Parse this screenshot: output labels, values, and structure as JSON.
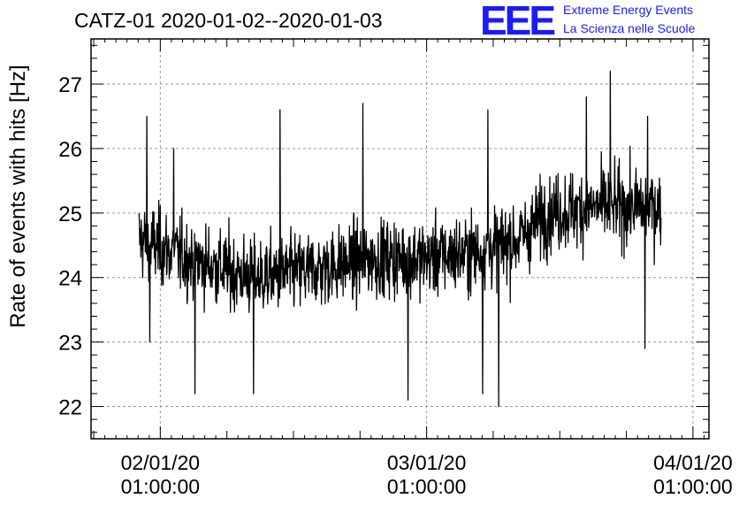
{
  "title": "CATZ-01 2020-01-02--2020-01-03",
  "logo": {
    "text": "EEE",
    "line1": "Extreme Energy Events",
    "line2": "La Scienza nelle Scuole",
    "color": "#1a1aff"
  },
  "chart_data": {
    "type": "line",
    "ylabel": "Rate of events with hits [Hz]",
    "xlabel": "",
    "ylim": [
      21.5,
      27.7
    ],
    "xlim": [
      -0.26,
      2.06
    ],
    "grid": true,
    "y_ticks": [
      22,
      23,
      24,
      25,
      26,
      27
    ],
    "x_ticks": [
      {
        "value": 0,
        "date": "02/01/20",
        "time": "01:00:00"
      },
      {
        "value": 1,
        "date": "03/01/20",
        "time": "01:00:00"
      },
      {
        "value": 2,
        "date": "04/01/20",
        "time": "01:00:00"
      }
    ],
    "series_style": {
      "color": "#000000"
    },
    "series": [
      {
        "x_start": -0.08,
        "x_end": 1.88,
        "trend": [
          {
            "x": -0.08,
            "y": 24.6
          },
          {
            "x": 0.1,
            "y": 24.3
          },
          {
            "x": 0.35,
            "y": 24.0
          },
          {
            "x": 0.55,
            "y": 24.1
          },
          {
            "x": 0.8,
            "y": 24.3
          },
          {
            "x": 1.0,
            "y": 24.3
          },
          {
            "x": 1.2,
            "y": 24.4
          },
          {
            "x": 1.35,
            "y": 24.6
          },
          {
            "x": 1.45,
            "y": 25.0
          },
          {
            "x": 1.65,
            "y": 25.1
          },
          {
            "x": 1.88,
            "y": 25.1
          }
        ],
        "spread": 0.42,
        "peaks": [
          {
            "x": -0.05,
            "y": 26.5
          },
          {
            "x": 0.05,
            "y": 26.0
          },
          {
            "x": 0.45,
            "y": 26.6
          },
          {
            "x": 0.76,
            "y": 26.7
          },
          {
            "x": 1.23,
            "y": 26.6
          },
          {
            "x": 1.6,
            "y": 26.8
          },
          {
            "x": 1.69,
            "y": 27.2
          },
          {
            "x": 1.83,
            "y": 26.5
          }
        ],
        "troughs": [
          {
            "x": -0.04,
            "y": 23.0
          },
          {
            "x": 0.13,
            "y": 22.2
          },
          {
            "x": 0.35,
            "y": 22.2
          },
          {
            "x": 0.93,
            "y": 22.1
          },
          {
            "x": 1.27,
            "y": 22.0
          },
          {
            "x": 1.21,
            "y": 22.2
          },
          {
            "x": 1.82,
            "y": 22.9
          }
        ]
      }
    ]
  }
}
